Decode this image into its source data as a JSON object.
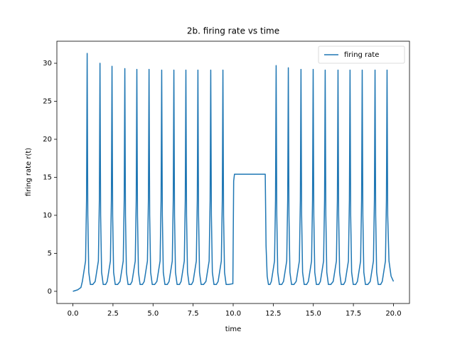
{
  "chart_data": {
    "type": "line",
    "title": "2b. firing rate vs time",
    "x_label": "time",
    "y_label": "firing rate r(t)",
    "legend_position": "upper right",
    "xlim": [
      -1.0,
      21.0
    ],
    "ylim": [
      -1.6,
      32.9
    ],
    "xticks": [
      {
        "value": 0,
        "label": "0.0"
      },
      2.5,
      {
        "value": 5,
        "label": "5.0"
      },
      7.5,
      {
        "value": 10,
        "label": "10.0"
      },
      12.5,
      {
        "value": 15,
        "label": "15.0"
      },
      17.5,
      {
        "value": 20,
        "label": "20.0"
      }
    ],
    "yticks": [
      0,
      5,
      10,
      15,
      20,
      25,
      30
    ],
    "series": [
      {
        "name": "firing rate",
        "color": "#1f77b4",
        "x": [
          0,
          0.3,
          0.5,
          0.59,
          0.79,
          0.85,
          0.89,
          0.93,
          0.99,
          1.09,
          1.24,
          1.39,
          1.59,
          1.65,
          1.69,
          1.73,
          1.79,
          1.89,
          2.04,
          2.14,
          2.34,
          2.4,
          2.44,
          2.48,
          2.54,
          2.64,
          2.79,
          2.94,
          3.14,
          3.2,
          3.24,
          3.28,
          3.34,
          3.44,
          3.59,
          3.69,
          3.89,
          3.95,
          3.99,
          4.03,
          4.09,
          4.19,
          4.34,
          4.45,
          4.65,
          4.71,
          4.75,
          4.79,
          4.85,
          4.95,
          5.1,
          5.24,
          5.44,
          5.5,
          5.54,
          5.58,
          5.64,
          5.74,
          5.89,
          6.0,
          6.2,
          6.26,
          6.3,
          6.34,
          6.4,
          6.5,
          6.65,
          6.75,
          6.95,
          7.01,
          7.05,
          7.09,
          7.15,
          7.25,
          7.4,
          7.5,
          7.7,
          7.76,
          7.8,
          7.84,
          7.9,
          8.0,
          8.15,
          8.3,
          8.5,
          8.56,
          8.6,
          8.64,
          8.7,
          8.8,
          8.95,
          9.06,
          9.26,
          9.32,
          9.36,
          9.4,
          9.46,
          9.56,
          9.71,
          9.98,
          10.03,
          10.08,
          12.0,
          12.05,
          12.12,
          12.2,
          12.3,
          12.38,
          12.58,
          12.64,
          12.68,
          12.72,
          12.78,
          12.88,
          13.03,
          13.14,
          13.34,
          13.4,
          13.44,
          13.48,
          13.54,
          13.64,
          13.79,
          13.93,
          14.13,
          14.19,
          14.23,
          14.27,
          14.33,
          14.43,
          14.58,
          14.69,
          14.89,
          14.95,
          14.99,
          15.03,
          15.09,
          15.19,
          15.34,
          15.44,
          15.64,
          15.7,
          15.74,
          15.78,
          15.84,
          15.94,
          16.09,
          16.24,
          16.44,
          16.5,
          16.54,
          16.58,
          16.64,
          16.74,
          16.89,
          16.99,
          17.19,
          17.25,
          17.29,
          17.33,
          17.39,
          17.49,
          17.64,
          17.75,
          17.95,
          18.01,
          18.05,
          18.09,
          18.15,
          18.25,
          18.4,
          18.55,
          18.75,
          18.81,
          18.85,
          18.89,
          18.95,
          19.05,
          19.2,
          19.3,
          19.5,
          19.56,
          19.6,
          19.64,
          19.72,
          19.85,
          20.0
        ],
        "values": [
          0,
          0.2,
          0.5,
          1.3,
          4,
          12,
          31.3,
          10,
          2.5,
          0.9,
          0.9,
          1.3,
          4,
          12,
          30.0,
          10,
          2.5,
          0.9,
          0.9,
          1.3,
          4,
          12,
          29.6,
          10,
          2.5,
          0.9,
          0.9,
          1.3,
          4,
          12,
          29.3,
          10,
          2.5,
          0.9,
          0.9,
          1.3,
          4,
          12,
          29.2,
          10,
          2.5,
          0.9,
          0.9,
          1.3,
          4,
          12,
          29.2,
          10,
          2.5,
          0.9,
          0.9,
          1.3,
          4,
          12,
          29.1,
          10,
          2.5,
          0.9,
          0.9,
          1.3,
          4,
          12,
          29.1,
          10,
          2.5,
          0.9,
          0.9,
          1.3,
          4,
          12,
          29.1,
          10,
          2.5,
          0.9,
          0.9,
          1.3,
          4,
          12,
          29.1,
          10,
          2.5,
          0.9,
          0.9,
          1.3,
          4,
          12,
          29.1,
          10,
          2.5,
          0.9,
          0.9,
          1.3,
          4,
          12,
          29.1,
          10,
          2.5,
          0.9,
          0.9,
          1.0,
          14.5,
          15.4,
          15.4,
          6,
          2,
          0.9,
          0.9,
          1.3,
          4,
          12,
          29.7,
          10,
          2.5,
          0.9,
          0.9,
          1.3,
          4,
          12,
          29.4,
          10,
          2.5,
          0.9,
          0.9,
          1.3,
          4,
          12,
          29.2,
          10,
          2.5,
          0.9,
          0.9,
          1.3,
          4,
          12,
          29.2,
          10,
          2.5,
          0.9,
          0.9,
          1.3,
          4,
          12,
          29.1,
          10,
          2.5,
          0.9,
          0.9,
          1.3,
          4,
          12,
          29.1,
          10,
          2.5,
          0.9,
          0.9,
          1.3,
          4,
          12,
          29.1,
          10,
          2.5,
          0.9,
          0.9,
          1.3,
          4,
          12,
          29.1,
          10,
          2.5,
          0.9,
          0.9,
          1.3,
          4,
          12,
          29.1,
          10,
          2.5,
          0.9,
          0.9,
          1.3,
          4,
          12,
          29.1,
          10,
          4,
          2,
          1.3
        ]
      }
    ]
  }
}
